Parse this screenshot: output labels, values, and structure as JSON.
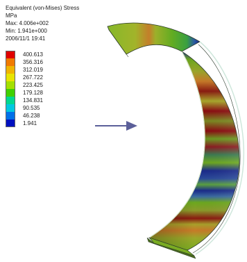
{
  "header": {
    "title": "Equivalent (von-Mises) Stress",
    "unit": "MPa",
    "max": "Max: 4.006e+002",
    "min": "Min: 1.941e+000",
    "date": "2006/11/1 19:41"
  },
  "legend": [
    {
      "value": "400.613",
      "color": "#e00000"
    },
    {
      "value": "356.316",
      "color": "#f07a00"
    },
    {
      "value": "312.019",
      "color": "#f0b400"
    },
    {
      "value": "267.722",
      "color": "#e8e400"
    },
    {
      "value": "223.425",
      "color": "#a4e000"
    },
    {
      "value": "179.128",
      "color": "#40d000"
    },
    {
      "value": "134.831",
      "color": "#00d890"
    },
    {
      "value": "90.535",
      "color": "#00c8e0"
    },
    {
      "value": "46.238",
      "color": "#0070e8"
    },
    {
      "value": "1.941",
      "color": "#0010c0"
    }
  ],
  "colors": {
    "arrow": "#5b5f99",
    "edge": "#2c3a2c",
    "band_dark_red": "#8a0a10",
    "band_green": "#6ca81e",
    "band_olive": "#9aa42a",
    "band_blue": "#1a2a8a",
    "band_orange": "#c77a28"
  }
}
